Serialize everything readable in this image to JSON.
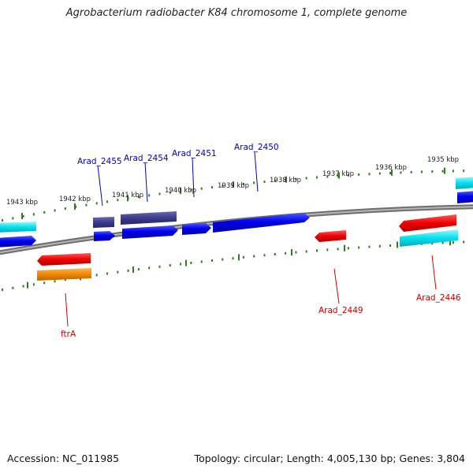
{
  "title": "Agrobacterium radiobacter K84 chromosome 1, complete genome",
  "accession": "Accession: NC_011985",
  "summary": "Topology: circular; Length: 4,005,130 bp; Genes: 3,804",
  "colors": {
    "background": "#ffffff",
    "backbone": "#8a8a8a",
    "tick": "#2e7d1e",
    "tick_label": "#222222",
    "label_top": "#0000cc",
    "label_bottom": "#cc0000",
    "gene_blue": "#0000ee",
    "gene_navy": "#3b3b8c",
    "gene_red": "#ee0000",
    "gene_cyan": "#00e0ee",
    "gene_orange": "#ee8800"
  },
  "ticks": [
    {
      "label": "1943 kbp"
    },
    {
      "label": "1942 kbp"
    },
    {
      "label": "1941 kbp"
    },
    {
      "label": "1940 kbp"
    },
    {
      "label": "1939 kbp"
    },
    {
      "label": "1938 kbp"
    },
    {
      "label": "1937 kbp"
    },
    {
      "label": "1936 kbp"
    },
    {
      "label": "1935 kbp"
    }
  ],
  "gene_labels": {
    "top": [
      "Arad_2455",
      "Arad_2454",
      "Arad_2451",
      "Arad_2450"
    ],
    "bottom": [
      "ftrA",
      "Arad_2449",
      "Arad_2446"
    ]
  },
  "genes": [
    {
      "color": "cyan",
      "strand": "forward"
    },
    {
      "color": "blue",
      "strand": "forward"
    },
    {
      "color": "red",
      "strand": "reverse"
    },
    {
      "color": "orange",
      "strand": "forward"
    },
    {
      "color": "navy",
      "strand": "forward"
    },
    {
      "color": "blue",
      "strand": "forward"
    },
    {
      "color": "navy",
      "strand": "forward"
    },
    {
      "color": "blue",
      "strand": "forward"
    },
    {
      "color": "blue",
      "strand": "forward"
    },
    {
      "color": "blue",
      "strand": "forward"
    },
    {
      "color": "red",
      "strand": "reverse"
    },
    {
      "color": "red",
      "strand": "reverse"
    },
    {
      "color": "cyan",
      "strand": "forward"
    },
    {
      "color": "cyan",
      "strand": "forward"
    },
    {
      "color": "blue",
      "strand": "forward"
    }
  ]
}
